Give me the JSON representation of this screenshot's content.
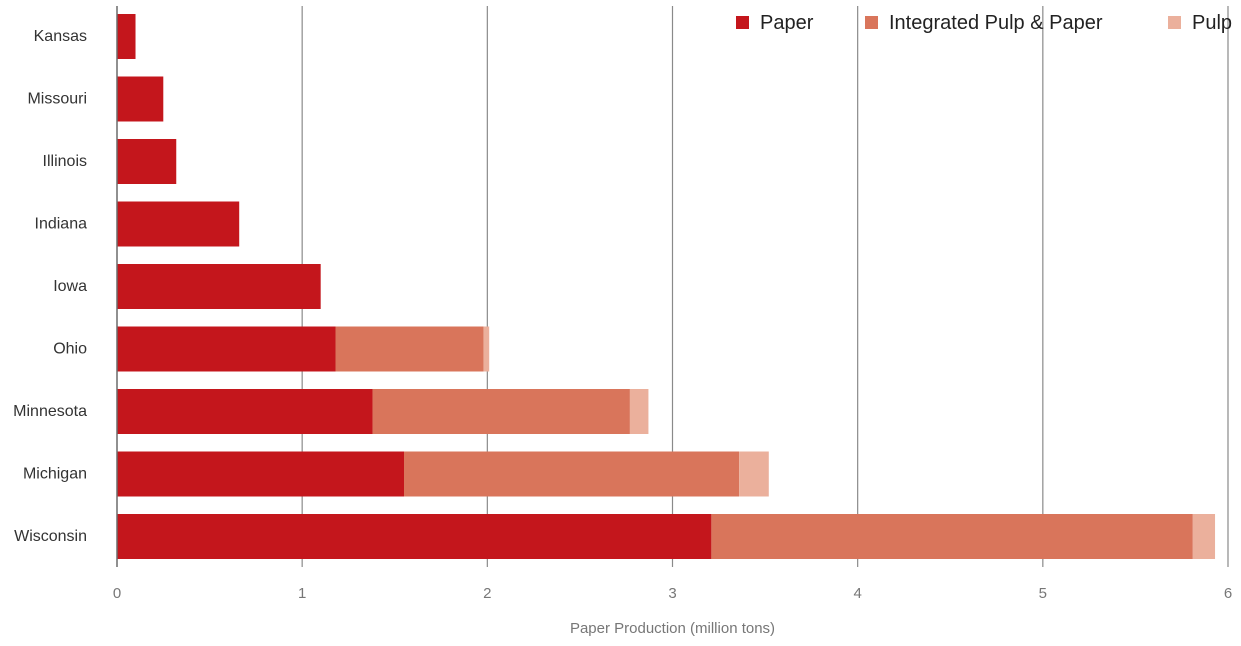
{
  "chart_data": {
    "type": "bar",
    "orientation": "horizontal",
    "stacked": true,
    "title": "",
    "xlabel": "Paper Production (million tons)",
    "ylabel": "",
    "xlim": [
      0,
      6
    ],
    "xticks": [
      0,
      1,
      2,
      3,
      4,
      5,
      6
    ],
    "grid": "vertical",
    "legend_position": "top-right",
    "categories": [
      "Kansas",
      "Missouri",
      "Illinois",
      "Indiana",
      "Iowa",
      "Ohio",
      "Minnesota",
      "Michigan",
      "Wisconsin"
    ],
    "series": [
      {
        "name": "Paper",
        "color": "#c4161c",
        "values": [
          0.1,
          0.25,
          0.32,
          0.66,
          1.1,
          1.18,
          1.38,
          1.55,
          3.21
        ]
      },
      {
        "name": "Integrated Pulp & Paper",
        "color": "#d9755b",
        "values": [
          0,
          0,
          0,
          0,
          0,
          0.8,
          1.39,
          1.81,
          2.6
        ]
      },
      {
        "name": "Pulp",
        "color": "#ebb09c",
        "values": [
          0,
          0,
          0,
          0,
          0,
          0.03,
          0.1,
          0.16,
          0.12
        ]
      }
    ]
  }
}
